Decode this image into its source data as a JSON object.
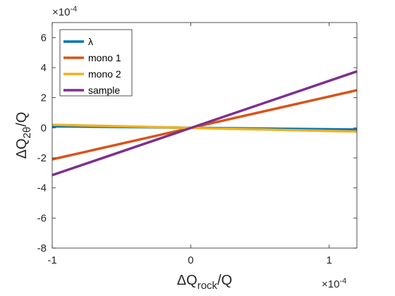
{
  "chart_data": {
    "type": "line",
    "xlabel": {
      "base": "ΔQ",
      "subscript": "rock",
      "suffix": "/Q"
    },
    "ylabel": {
      "base": "ΔQ",
      "subscript": "2θ",
      "suffix": "/Q"
    },
    "x_multiplier": {
      "base": "×10",
      "exponent": "-4"
    },
    "y_multiplier": {
      "base": "×10",
      "exponent": "-4"
    },
    "xlim": [
      -1,
      1.2
    ],
    "ylim": [
      -8,
      7
    ],
    "x_ticks": [
      -1,
      0,
      1
    ],
    "x_tick_labels": [
      "-1",
      "0",
      "1"
    ],
    "y_ticks": [
      6,
      4,
      2,
      0,
      -2,
      -4,
      -6,
      -8
    ],
    "y_tick_labels": [
      "6",
      "4",
      "2",
      "0",
      "-2",
      "-4",
      "-6",
      "-8"
    ],
    "grid": false,
    "legend_position": "top-left",
    "series": [
      {
        "name": "λ",
        "color": "#0072BD",
        "x": [
          -1,
          1.2
        ],
        "y": [
          0.1,
          -0.12
        ]
      },
      {
        "name": "mono 1",
        "color": "#D95319",
        "x": [
          -1,
          1.2
        ],
        "y": [
          -2.1,
          2.5
        ]
      },
      {
        "name": "mono 2",
        "color": "#EDB120",
        "x": [
          -1,
          1.2
        ],
        "y": [
          0.2,
          -0.25
        ]
      },
      {
        "name": "sample",
        "color": "#7E2F8E",
        "x": [
          -1,
          1.2
        ],
        "y": [
          -3.15,
          3.75
        ]
      }
    ]
  }
}
